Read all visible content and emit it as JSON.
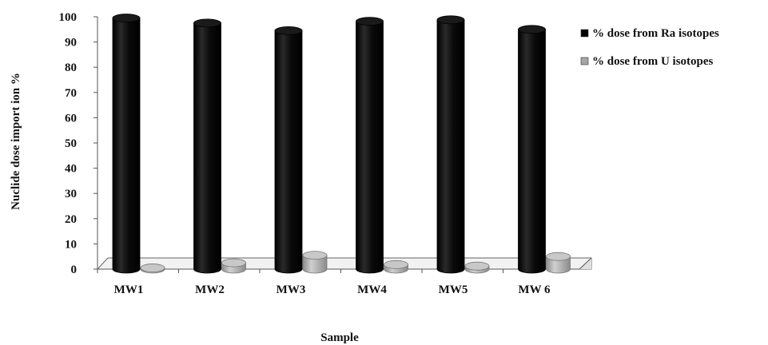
{
  "chart_data": {
    "type": "bar",
    "title": "",
    "xlabel": "Sample",
    "ylabel": "Nuclide dose import ion %",
    "categories": [
      "MW1",
      "MW2",
      "MW3",
      "MW4",
      "MW5",
      "MW 6"
    ],
    "series": [
      {
        "name": "% dose from Ra isotopes",
        "values": [
          99.5,
          97.5,
          94.5,
          98.2,
          98.8,
          95
        ],
        "color": "#000000"
      },
      {
        "name": "% dose from U isotopes",
        "values": [
          0.5,
          2.5,
          5.5,
          1.8,
          1.2,
          5
        ],
        "color": "#a6a6a6"
      }
    ],
    "ylim": [
      0,
      100
    ],
    "yticks": [
      0,
      10,
      20,
      30,
      40,
      50,
      60,
      70,
      80,
      90,
      100
    ],
    "grid": false,
    "legend": "right",
    "style": "3d-cylinder"
  }
}
